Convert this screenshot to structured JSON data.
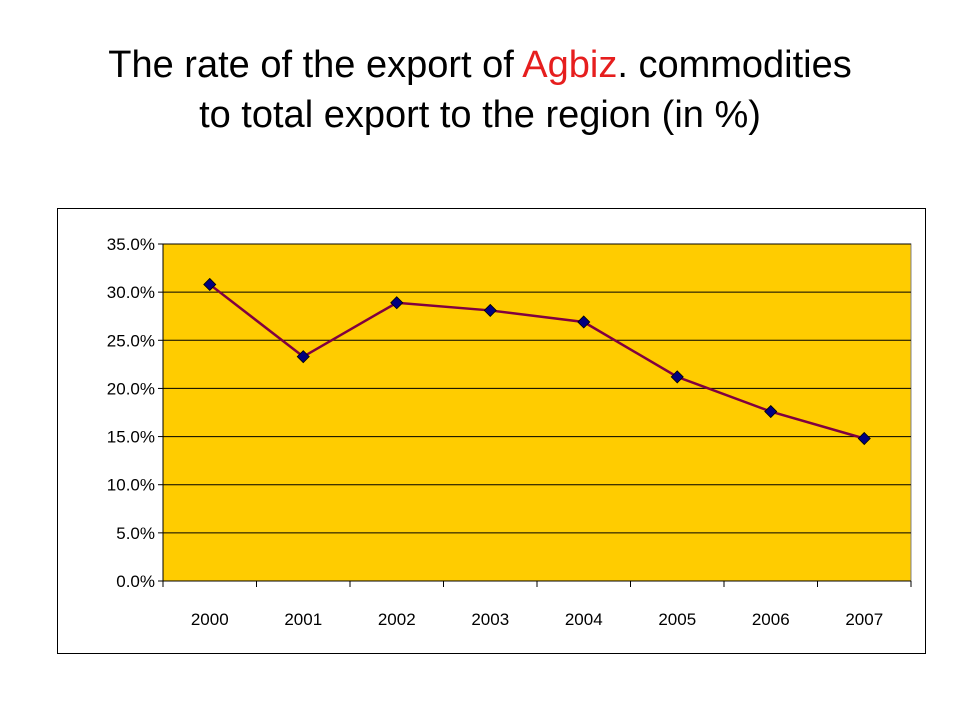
{
  "slide": {
    "title_line1_pre": "The rate of the export of ",
    "title_line1_highlight": "Agbiz",
    "title_line1_post": ". commodities",
    "title_line2": "to total export to the region (in %)",
    "highlight_color": "#e61e1e"
  },
  "chart_data": {
    "type": "line",
    "title": "The rate of the export of Agbiz. commodities to total export to the region (in %)",
    "xlabel": "",
    "ylabel": "",
    "categories": [
      "2000",
      "2001",
      "2002",
      "2003",
      "2004",
      "2005",
      "2006",
      "2007"
    ],
    "series": [
      {
        "values": [
          30.8,
          23.3,
          28.9,
          28.1,
          26.9,
          21.2,
          17.6,
          14.8
        ]
      }
    ],
    "ylim": [
      0,
      35
    ],
    "ytick_values": [
      0,
      5,
      10,
      15,
      20,
      25,
      30,
      35
    ],
    "ytick_labels": [
      "0.0%",
      "5.0%",
      "10.0%",
      "15.0%",
      "20.0%",
      "25.0%",
      "30.0%",
      "35.0%"
    ],
    "grid": true,
    "legend": "none",
    "colors": {
      "plot_background": "#ffcc00",
      "line": "#800040",
      "marker": "#000080",
      "gridline": "#000000"
    }
  }
}
